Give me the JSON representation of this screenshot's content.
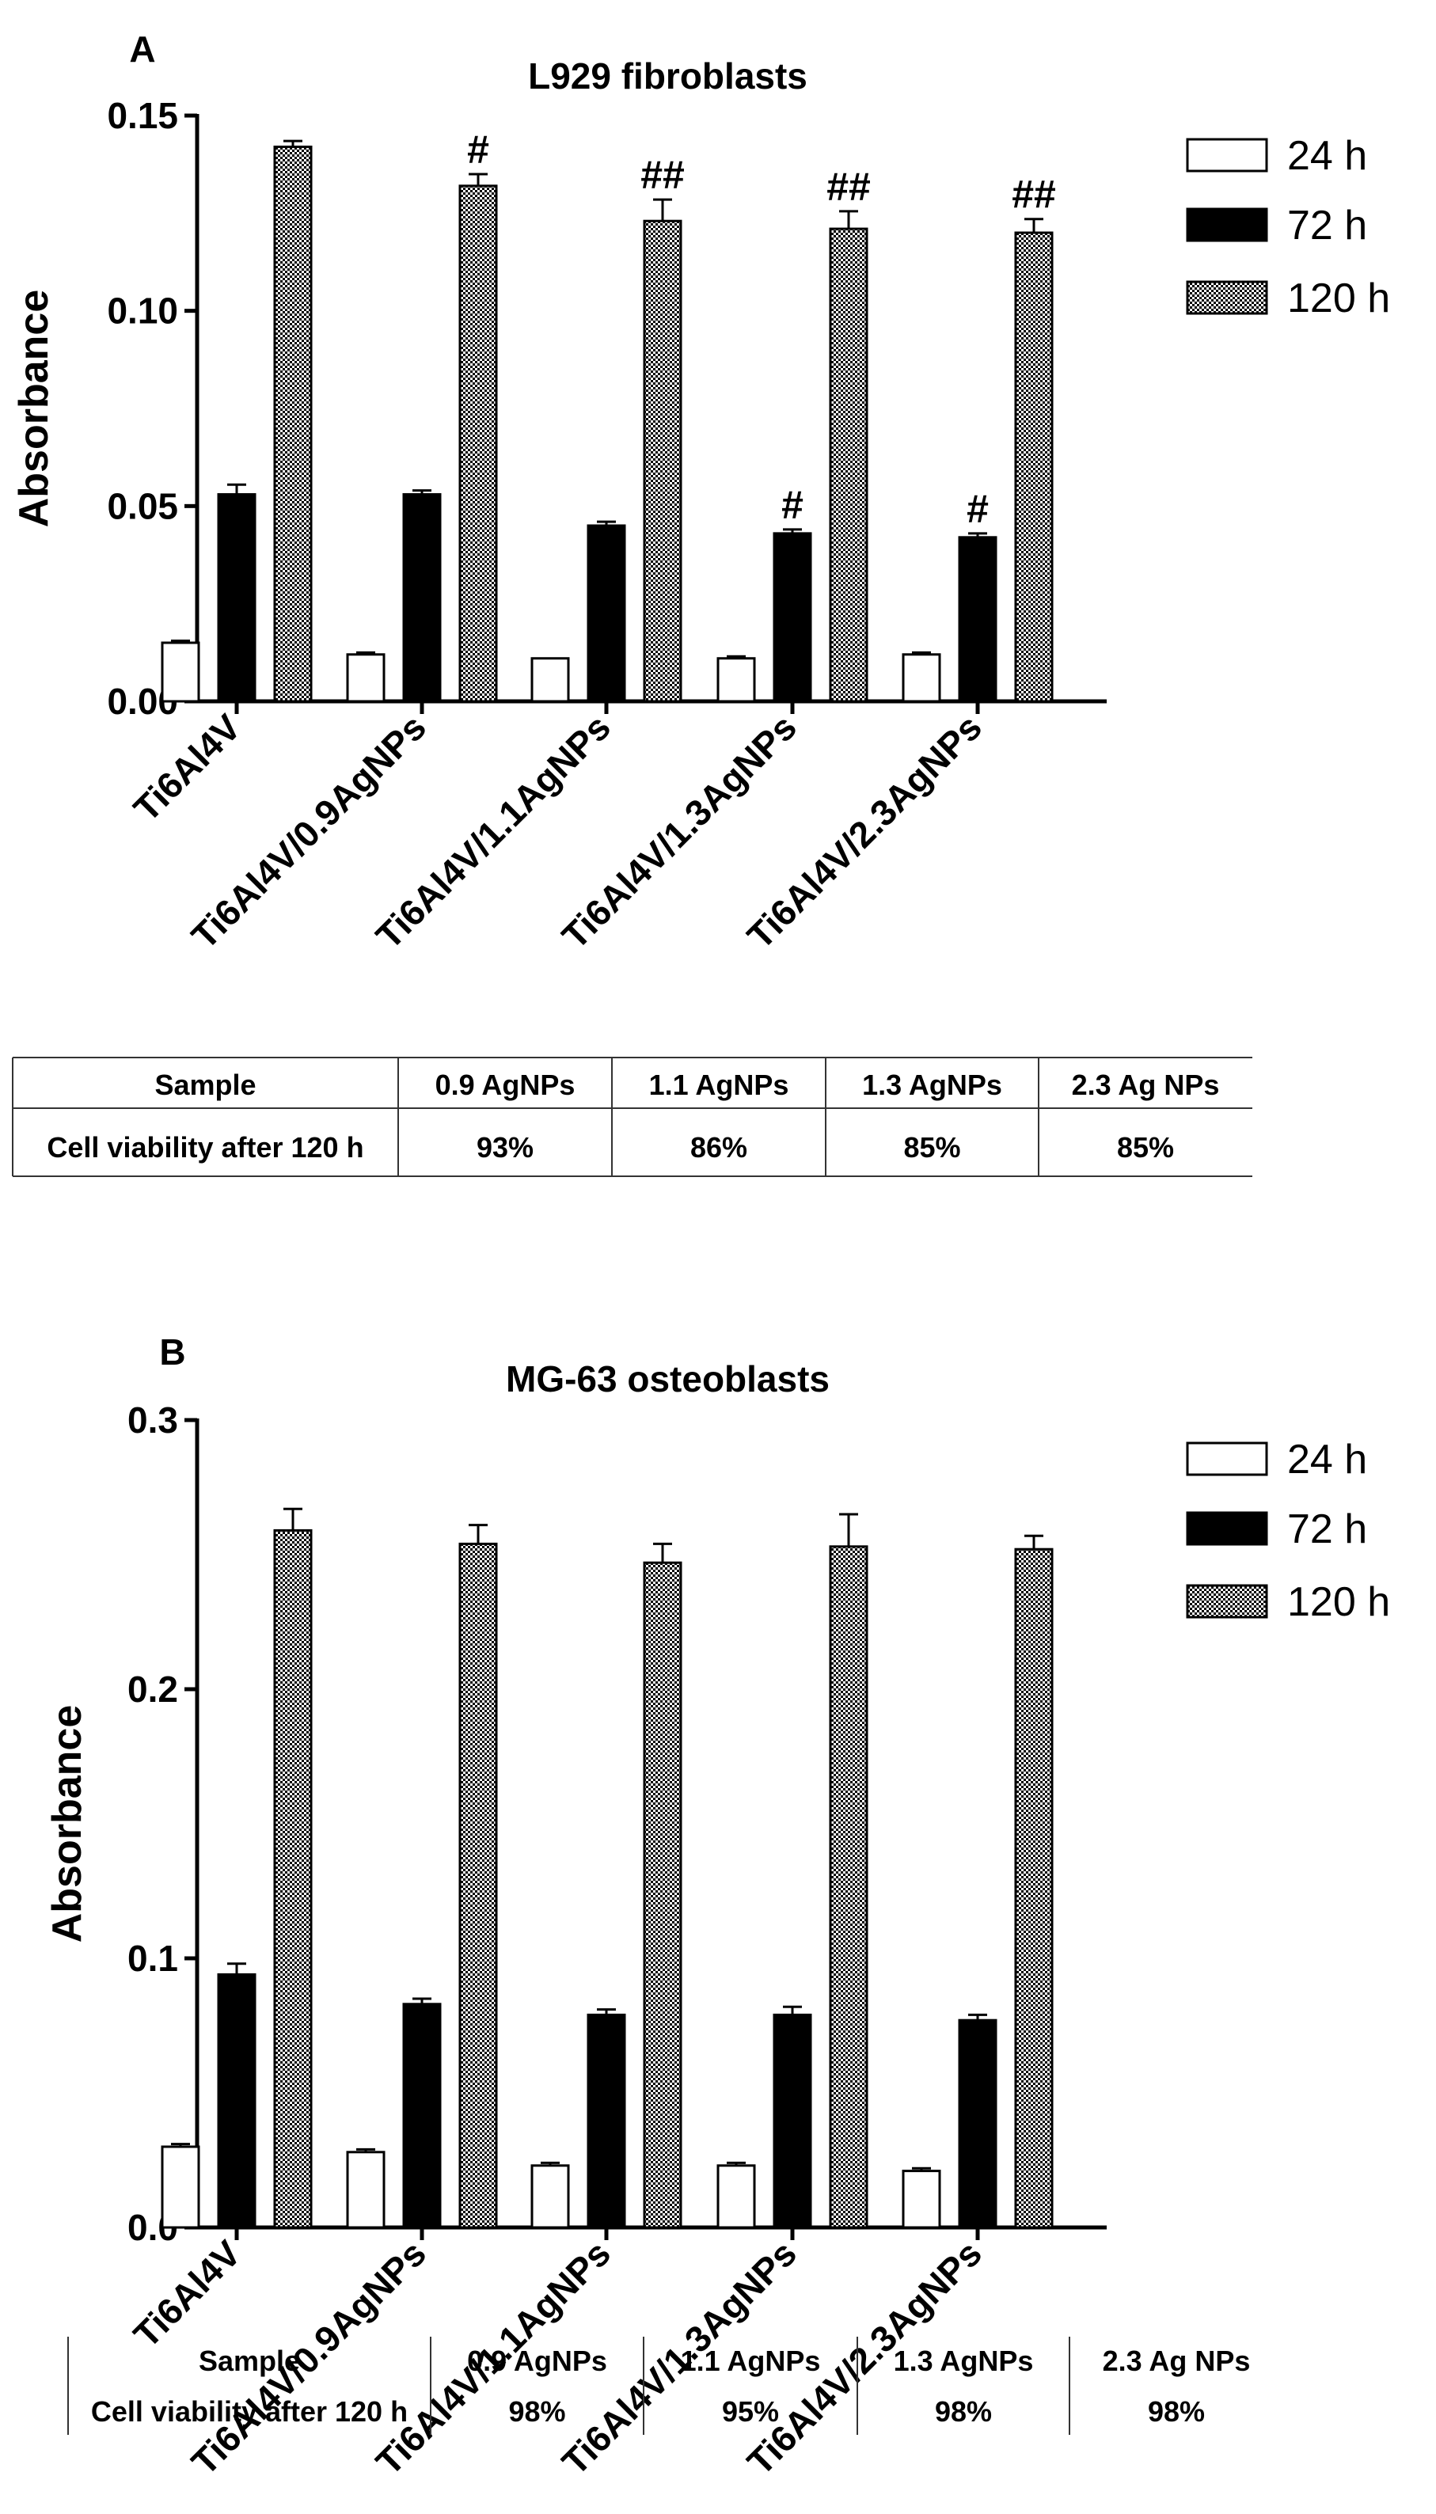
{
  "legend_labels": {
    "s24": "24 h",
    "s72": "72 h",
    "s120": "120 h"
  },
  "colors": {
    "fill24": "#ffffff",
    "fill72": "#000000",
    "pattern120": "checker",
    "axis": "#000000"
  },
  "chart_data": [
    {
      "panel": "A",
      "type": "bar",
      "title": "L929 fibroblasts",
      "xlabel": "",
      "ylabel": "Absorbance",
      "ylim": [
        0,
        0.15
      ],
      "yticks": [
        "0.00",
        "0.05",
        "0.10",
        "0.15"
      ],
      "categories": [
        "Ti6Al4V",
        "Ti6Al4V/0.9AgNPs",
        "Ti6Al4V/1.1AgNPs",
        "Ti6Al4V/1.3AgNPs",
        "Ti6Al4V/2.3AgNPs"
      ],
      "series": [
        {
          "name": "24 h",
          "values": [
            0.015,
            0.012,
            0.011,
            0.011,
            0.012
          ],
          "errors": [
            0.0005,
            0.0005,
            0,
            0.0005,
            0.0005
          ],
          "annotations": [
            "",
            "",
            "",
            "",
            ""
          ]
        },
        {
          "name": "72 h",
          "values": [
            0.053,
            0.053,
            0.045,
            0.043,
            0.042
          ],
          "errors": [
            0.0025,
            0.001,
            0.001,
            0.001,
            0.001
          ],
          "annotations": [
            "",
            "",
            "",
            "#",
            "#"
          ]
        },
        {
          "name": "120 h",
          "values": [
            0.142,
            0.132,
            0.123,
            0.121,
            0.12
          ],
          "errors": [
            0.0015,
            0.003,
            0.0055,
            0.0045,
            0.0035
          ],
          "annotations": [
            "",
            "#",
            "##",
            "##",
            "##"
          ]
        }
      ],
      "legend": "right",
      "table": {
        "headers": [
          "Sample",
          "0.9 AgNPs",
          "1.1 AgNPs",
          "1.3 AgNPs",
          "2.3 Ag NPs"
        ],
        "row": [
          "Cell viability after 120 h",
          "93%",
          "86%",
          "85%",
          "85%"
        ]
      }
    },
    {
      "panel": "B",
      "type": "bar",
      "title": "MG-63 osteoblasts",
      "xlabel": "",
      "ylabel": "Absorbance",
      "ylim": [
        0,
        0.3
      ],
      "yticks": [
        "0.0",
        "0.1",
        "0.2",
        "0.3"
      ],
      "categories": [
        "Ti6Al4V",
        "Ti6Al4V/0.9AgNPs",
        "Ti6Al4V/1.1AgNPs",
        "Ti6Al4V/1.3AgNPs",
        "Ti6Al4V/2.3AgNPs"
      ],
      "series": [
        {
          "name": "24 h",
          "values": [
            0.03,
            0.028,
            0.023,
            0.023,
            0.021
          ],
          "errors": [
            0.001,
            0.001,
            0.001,
            0.001,
            0.001
          ],
          "annotations": [
            "",
            "",
            "",
            "",
            ""
          ]
        },
        {
          "name": "72 h",
          "values": [
            0.094,
            0.083,
            0.079,
            0.079,
            0.077
          ],
          "errors": [
            0.004,
            0.002,
            0.002,
            0.003,
            0.002
          ],
          "annotations": [
            "",
            "",
            "",
            "",
            ""
          ]
        },
        {
          "name": "120 h",
          "values": [
            0.259,
            0.254,
            0.247,
            0.253,
            0.252
          ],
          "errors": [
            0.008,
            0.007,
            0.007,
            0.012,
            0.005
          ],
          "annotations": [
            "",
            "",
            "",
            "",
            ""
          ]
        }
      ],
      "legend": "right",
      "table": {
        "headers": [
          "Sample",
          "0.9 AgNPs",
          "1.1 AgNPs",
          "1.3 AgNPs",
          "2.3 Ag NPs"
        ],
        "row": [
          "Cell viability after 120 h",
          "98%",
          "95%",
          "98%",
          "98%"
        ]
      }
    }
  ]
}
